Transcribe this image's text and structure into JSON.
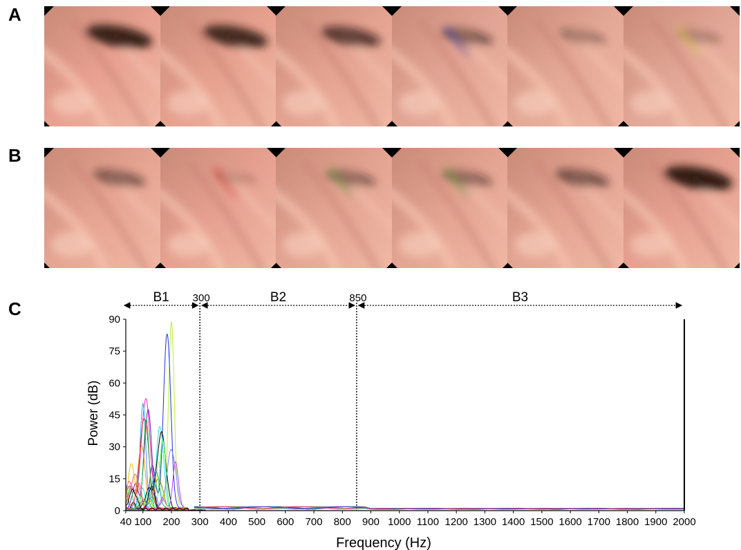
{
  "panels": {
    "a_label": "A",
    "b_label": "B",
    "c_label": "C"
  },
  "strip_a": [
    {
      "dark": 0.9,
      "tint": "#e8a090",
      "artifact": "none"
    },
    {
      "dark": 0.85,
      "tint": "#e6a08e",
      "artifact": "none"
    },
    {
      "dark": 0.7,
      "tint": "#e4a290",
      "artifact": "none"
    },
    {
      "dark": 0.5,
      "tint": "#e2a494",
      "artifact": "blue"
    },
    {
      "dark": 0.35,
      "tint": "#e4a896",
      "artifact": "none"
    },
    {
      "dark": 0.3,
      "tint": "#e2a696",
      "artifact": "yellow"
    }
  ],
  "strip_b": [
    {
      "dark": 0.5,
      "tint": "#e6a492",
      "artifact": "none"
    },
    {
      "dark": 0.2,
      "tint": "#e6a090",
      "artifact": "red"
    },
    {
      "dark": 0.45,
      "tint": "#e4a492",
      "artifact": "green"
    },
    {
      "dark": 0.45,
      "tint": "#e4a492",
      "artifact": "green"
    },
    {
      "dark": 0.55,
      "tint": "#e4a492",
      "artifact": "none"
    },
    {
      "dark": 0.95,
      "tint": "#e6a090",
      "artifact": "none"
    }
  ],
  "chart_data": {
    "type": "line",
    "xlabel": "Frequency (Hz)",
    "ylabel": "Power (dB)",
    "xlim": [
      40,
      2000
    ],
    "ylim": [
      0,
      90
    ],
    "x_ticks": [
      "40",
      "100",
      "200",
      "300",
      "400",
      "500",
      "600",
      "700",
      "800",
      "900",
      "1000",
      "1100",
      "1200",
      "1300",
      "1400",
      "1500",
      "1600",
      "1700",
      "1800",
      "1900",
      "2000"
    ],
    "x_tick_values": [
      40,
      100,
      200,
      300,
      400,
      500,
      600,
      700,
      800,
      900,
      1000,
      1100,
      1200,
      1300,
      1400,
      1500,
      1600,
      1700,
      1800,
      1900,
      2000
    ],
    "y_ticks": [
      "0",
      "15",
      "30",
      "45",
      "60",
      "75",
      "90"
    ],
    "y_tick_values": [
      0,
      15,
      30,
      45,
      60,
      75,
      90
    ],
    "bands": [
      {
        "name": "B1",
        "from": 40,
        "to": 300
      },
      {
        "name": "B2",
        "from": 300,
        "to": 850
      },
      {
        "name": "B3",
        "from": 850,
        "to": 2000
      }
    ],
    "band_boundaries": [
      {
        "label": "300",
        "x": 300
      },
      {
        "label": "850",
        "x": 850
      }
    ],
    "peaks": [
      {
        "color": "#b8f030",
        "x": 200,
        "y": 88
      },
      {
        "color": "#2030e0",
        "x": 185,
        "y": 83
      },
      {
        "color": "#ff20c0",
        "x": 110,
        "y": 52
      },
      {
        "color": "#30a0ff",
        "x": 100,
        "y": 50
      },
      {
        "color": "#6020c0",
        "x": 118,
        "y": 47
      },
      {
        "color": "#d03030",
        "x": 105,
        "y": 43
      },
      {
        "color": "#20c040",
        "x": 112,
        "y": 42
      },
      {
        "color": "#20e0e0",
        "x": 160,
        "y": 39
      },
      {
        "color": "#000000",
        "x": 165,
        "y": 36
      },
      {
        "color": "#40ff40",
        "x": 170,
        "y": 33
      },
      {
        "color": "#f09020",
        "x": 95,
        "y": 30
      },
      {
        "color": "#8080ff",
        "x": 200,
        "y": 28
      },
      {
        "color": "#c040ff",
        "x": 215,
        "y": 22
      },
      {
        "color": "#f0c000",
        "x": 60,
        "y": 21
      },
      {
        "color": "#ff6060",
        "x": 72,
        "y": 16
      },
      {
        "color": "#000000",
        "x": 130,
        "y": 11
      },
      {
        "color": "#20a0a0",
        "x": 145,
        "y": 18
      },
      {
        "color": "#a0a000",
        "x": 155,
        "y": 14
      },
      {
        "color": "#ff4080",
        "x": 85,
        "y": 12
      },
      {
        "color": "#000000",
        "x": 65,
        "y": 9
      }
    ],
    "tail_colors": [
      "#b8f030",
      "#2030e0",
      "#20c040",
      "#000000",
      "#ff20c0",
      "#30a0ff",
      "#d03030",
      "#6020c0"
    ]
  }
}
